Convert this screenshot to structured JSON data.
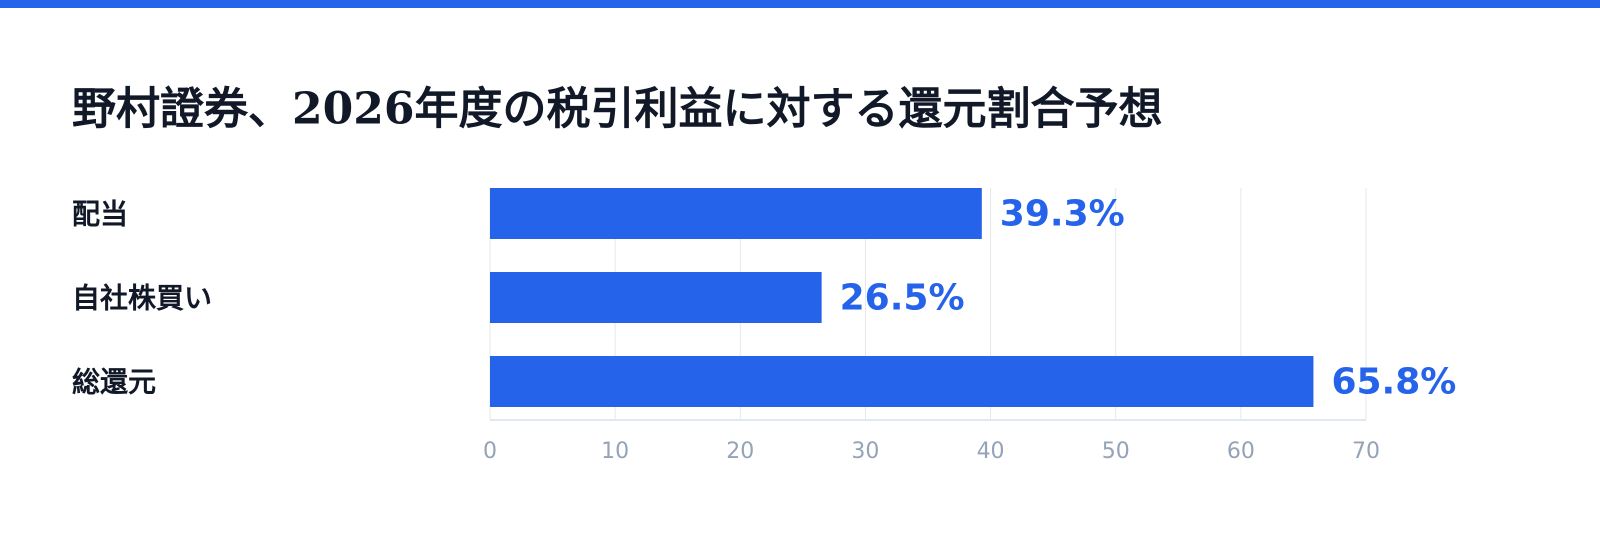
{
  "chart_data": {
    "type": "bar",
    "orientation": "horizontal",
    "title": "野村證券、2026年度の税引利益に対する還元割合予想",
    "categories": [
      "配当",
      "自社株買い",
      "総還元"
    ],
    "values": [
      39.3,
      26.5,
      65.8
    ],
    "value_labels": [
      "39.3%",
      "26.5%",
      "65.8%"
    ],
    "color": "#2563eb",
    "xlim": [
      0,
      70
    ],
    "xticks": [
      0,
      10,
      20,
      30,
      40,
      50,
      60,
      70
    ],
    "grid": true
  }
}
